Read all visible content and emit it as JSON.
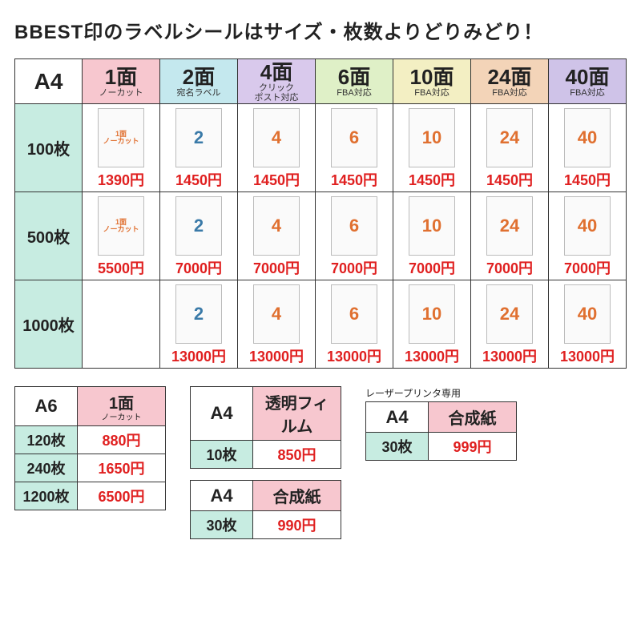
{
  "title": "BBEST印のラベルシールはサイズ・枚数よりどりみどり！",
  "mainTable": {
    "corner": "A4",
    "columns": [
      {
        "label": "1面",
        "sub": "ノーカット",
        "bg": "#f7c7cf",
        "thumbText": "1面\nノーカット",
        "thumbColor": "#e07030",
        "thumbSmall": true
      },
      {
        "label": "2面",
        "sub": "宛名ラベル",
        "bg": "#c4e8ee",
        "thumbText": "2",
        "thumbColor": "#3a7aa8"
      },
      {
        "label": "4面",
        "sub": "クリック\nポスト対応",
        "bg": "#d9c9ec",
        "thumbText": "4",
        "thumbColor": "#e07030"
      },
      {
        "label": "6面",
        "sub": "FBA対応",
        "bg": "#dff0c7",
        "thumbText": "6",
        "thumbColor": "#e07030"
      },
      {
        "label": "10面",
        "sub": "FBA対応",
        "bg": "#f3efc3",
        "thumbText": "10",
        "thumbColor": "#e07030"
      },
      {
        "label": "24面",
        "sub": "FBA対応",
        "bg": "#f3d4b8",
        "thumbText": "24",
        "thumbColor": "#e07030"
      },
      {
        "label": "40面",
        "sub": "FBA対応",
        "bg": "#cfc3e8",
        "thumbText": "40",
        "thumbColor": "#e07030"
      }
    ],
    "rowHeadBg": "#c7ece1",
    "rows": [
      {
        "label": "100枚",
        "cells": [
          {
            "price": "1390円"
          },
          {
            "price": "1450円"
          },
          {
            "price": "1450円"
          },
          {
            "price": "1450円"
          },
          {
            "price": "1450円"
          },
          {
            "price": "1450円"
          },
          {
            "price": "1450円"
          }
        ]
      },
      {
        "label": "500枚",
        "cells": [
          {
            "price": "5500円"
          },
          {
            "price": "7000円"
          },
          {
            "price": "7000円"
          },
          {
            "price": "7000円"
          },
          {
            "price": "7000円"
          },
          {
            "price": "7000円"
          },
          {
            "price": "7000円"
          }
        ]
      },
      {
        "label": "1000枚",
        "cells": [
          {
            "empty": true
          },
          {
            "price": "13000円"
          },
          {
            "price": "13000円"
          },
          {
            "price": "13000円"
          },
          {
            "price": "13000円"
          },
          {
            "price": "13000円"
          },
          {
            "price": "13000円"
          }
        ]
      }
    ]
  },
  "smallTables": {
    "a6": {
      "paper": "A6",
      "headerLabel": "1面",
      "headerSub": "ノーカット",
      "headerBg": "#f7c7cf",
      "qtyBg": "#c7ece1",
      "rows": [
        {
          "qty": "120枚",
          "price": "880円"
        },
        {
          "qty": "240枚",
          "price": "1650円"
        },
        {
          "qty": "1200枚",
          "price": "6500円"
        }
      ]
    },
    "film": {
      "paper": "A4",
      "headerLabel": "透明フィルム",
      "headerBg": "#f7c7cf",
      "qtyBg": "#c7ece1",
      "rows": [
        {
          "qty": "10枚",
          "price": "850円"
        }
      ]
    },
    "synth1": {
      "paper": "A4",
      "headerLabel": "合成紙",
      "headerBg": "#f7c7cf",
      "qtyBg": "#c7ece1",
      "rows": [
        {
          "qty": "30枚",
          "price": "990円"
        }
      ]
    },
    "synth2": {
      "caption": "レーザープリンタ専用",
      "paper": "A4",
      "headerLabel": "合成紙",
      "headerBg": "#f7c7cf",
      "qtyBg": "#c7ece1",
      "rows": [
        {
          "qty": "30枚",
          "price": "999円"
        }
      ]
    }
  }
}
